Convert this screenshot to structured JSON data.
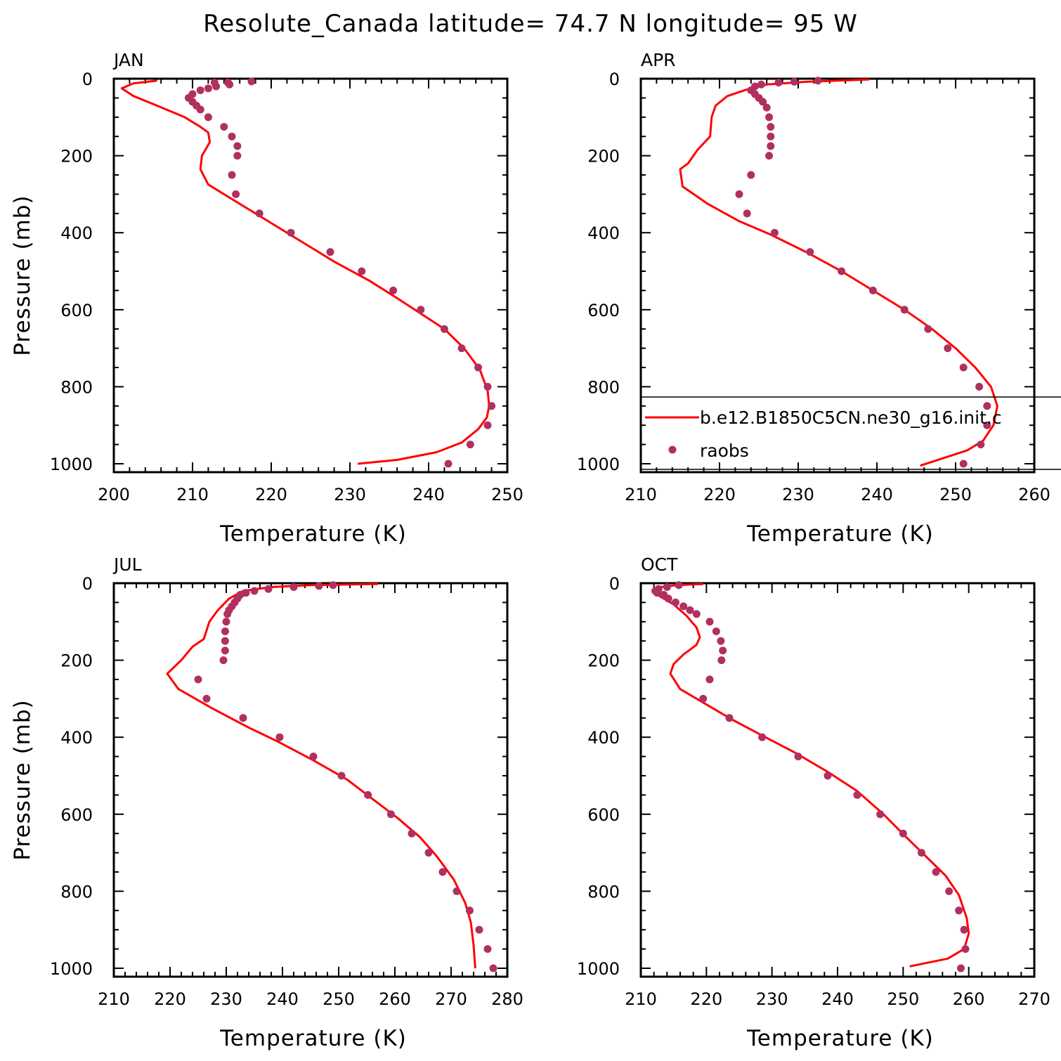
{
  "title": "Resolute_Canada  latitude= 74.7 N longitude= 95 W",
  "colors": {
    "model": "#ff0000",
    "obs": "#b03060",
    "axis": "#000000"
  },
  "legend": {
    "panel": "APR",
    "entries": [
      {
        "label": "b.e12.B1850C5CN.ne30_g16.init.c",
        "symbol": "line",
        "color": "#ff0000"
      },
      {
        "label": "raobs",
        "symbol": "dot",
        "color": "#b03060"
      }
    ]
  },
  "chart_data": [
    {
      "type": "line",
      "name": "JAN",
      "xlabel": "Temperature (K)",
      "ylabel": "Pressure (mb)",
      "xlim": [
        200,
        250
      ],
      "ylim": [
        0,
        1000
      ],
      "y_reversed": true,
      "xticks": [
        "200",
        "210",
        "220",
        "230",
        "240",
        "250"
      ],
      "yticks": [
        "0",
        "200",
        "400",
        "600",
        "800",
        "1000"
      ],
      "series": [
        {
          "name": "b.e12.B1850C5CN.ne30_g16.init.c",
          "kind": "line",
          "points": [
            [
              205.5,
              5
            ],
            [
              202.5,
              12
            ],
            [
              201.0,
              25
            ],
            [
              202.5,
              45
            ],
            [
              205.5,
              70
            ],
            [
              209.0,
              100
            ],
            [
              211.0,
              125
            ],
            [
              212.0,
              140
            ],
            [
              212.2,
              165
            ],
            [
              211.2,
              200
            ],
            [
              211.0,
              235
            ],
            [
              212.0,
              275
            ],
            [
              216.0,
              325
            ],
            [
              220.0,
              375
            ],
            [
              224.0,
              425
            ],
            [
              228.0,
              475
            ],
            [
              232.5,
              525
            ],
            [
              236.0,
              570
            ],
            [
              239.0,
              610
            ],
            [
              242.0,
              650
            ],
            [
              244.5,
              700
            ],
            [
              246.5,
              755
            ],
            [
              247.5,
              810
            ],
            [
              247.7,
              850
            ],
            [
              247.4,
              880
            ],
            [
              246.3,
              910
            ],
            [
              244.2,
              945
            ],
            [
              241.0,
              970
            ],
            [
              236.0,
              990
            ],
            [
              231.0,
              1000
            ]
          ]
        },
        {
          "name": "raobs",
          "kind": "scatter",
          "points": [
            [
              217.5,
              7
            ],
            [
              214.5,
              10
            ],
            [
              214.7,
              15
            ],
            [
              213.0,
              20
            ],
            [
              212.8,
              10
            ],
            [
              212.0,
              25
            ],
            [
              211.0,
              30
            ],
            [
              210.0,
              40
            ],
            [
              209.5,
              50
            ],
            [
              210.0,
              60
            ],
            [
              210.5,
              70
            ],
            [
              211.0,
              80
            ],
            [
              212.0,
              100
            ],
            [
              214.0,
              125
            ],
            [
              215.0,
              150
            ],
            [
              215.7,
              175
            ],
            [
              215.7,
              200
            ],
            [
              215.0,
              250
            ],
            [
              215.5,
              300
            ],
            [
              218.5,
              350
            ],
            [
              222.5,
              400
            ],
            [
              227.5,
              450
            ],
            [
              231.5,
              500
            ],
            [
              235.5,
              550
            ],
            [
              239.0,
              600
            ],
            [
              242.0,
              650
            ],
            [
              244.2,
              700
            ],
            [
              246.3,
              750
            ],
            [
              247.5,
              800
            ],
            [
              248.0,
              850
            ],
            [
              247.5,
              900
            ],
            [
              245.3,
              950
            ],
            [
              242.5,
              1000
            ]
          ]
        }
      ]
    },
    {
      "type": "line",
      "name": "APR",
      "xlabel": "Temperature (K)",
      "ylabel": "",
      "xlim": [
        210,
        260
      ],
      "ylim": [
        0,
        1000
      ],
      "y_reversed": true,
      "xticks": [
        "210",
        "220",
        "230",
        "240",
        "250",
        "260"
      ],
      "yticks": [
        "0",
        "200",
        "400",
        "600",
        "800",
        "1000"
      ],
      "series": [
        {
          "name": "b.e12.B1850C5CN.ne30_g16.init.c",
          "kind": "line",
          "points": [
            [
              239.0,
              2
            ],
            [
              231.0,
              8
            ],
            [
              226.0,
              15
            ],
            [
              223.5,
              28
            ],
            [
              221.0,
              45
            ],
            [
              219.5,
              70
            ],
            [
              219.0,
              100
            ],
            [
              218.8,
              150
            ],
            [
              217.2,
              185
            ],
            [
              216.0,
              220
            ],
            [
              215.0,
              235
            ],
            [
              215.3,
              280
            ],
            [
              218.5,
              325
            ],
            [
              222.5,
              370
            ],
            [
              226.5,
              405
            ],
            [
              231.0,
              450
            ],
            [
              235.5,
              500
            ],
            [
              239.5,
              550
            ],
            [
              243.5,
              600
            ],
            [
              247.0,
              650
            ],
            [
              250.0,
              700
            ],
            [
              252.5,
              750
            ],
            [
              254.5,
              800
            ],
            [
              255.3,
              850
            ],
            [
              254.8,
              900
            ],
            [
              253.5,
              940
            ],
            [
              251.5,
              965
            ],
            [
              248.5,
              985
            ],
            [
              245.5,
              1005
            ]
          ]
        },
        {
          "name": "raobs",
          "kind": "scatter",
          "points": [
            [
              232.5,
              5
            ],
            [
              229.5,
              8
            ],
            [
              227.5,
              10
            ],
            [
              225.3,
              15
            ],
            [
              224.5,
              20
            ],
            [
              224.0,
              30
            ],
            [
              224.5,
              40
            ],
            [
              225.0,
              50
            ],
            [
              225.5,
              60
            ],
            [
              226.0,
              75
            ],
            [
              226.3,
              100
            ],
            [
              226.5,
              125
            ],
            [
              226.5,
              150
            ],
            [
              226.5,
              175
            ],
            [
              226.3,
              200
            ],
            [
              224.0,
              250
            ],
            [
              222.5,
              300
            ],
            [
              223.5,
              350
            ],
            [
              227.0,
              400
            ],
            [
              231.5,
              450
            ],
            [
              235.5,
              500
            ],
            [
              239.5,
              550
            ],
            [
              243.5,
              600
            ],
            [
              246.5,
              650
            ],
            [
              249.0,
              700
            ],
            [
              251.0,
              750
            ],
            [
              253.0,
              800
            ],
            [
              254.0,
              850
            ],
            [
              254.0,
              900
            ],
            [
              253.2,
              950
            ],
            [
              251.0,
              1000
            ]
          ]
        }
      ]
    },
    {
      "type": "line",
      "name": "JUL",
      "xlabel": "Temperature (K)",
      "ylabel": "Pressure (mb)",
      "xlim": [
        210,
        280
      ],
      "ylim": [
        0,
        1000
      ],
      "y_reversed": true,
      "xticks": [
        "210",
        "220",
        "230",
        "240",
        "250",
        "260",
        "270",
        "280"
      ],
      "yticks": [
        "0",
        "200",
        "400",
        "600",
        "800",
        "1000"
      ],
      "series": [
        {
          "name": "b.e12.B1850C5CN.ne30_g16.init.c",
          "kind": "line",
          "points": [
            [
              257.0,
              2
            ],
            [
              245.0,
              5
            ],
            [
              238.0,
              10
            ],
            [
              233.0,
              20
            ],
            [
              230.5,
              40
            ],
            [
              228.5,
              70
            ],
            [
              227.0,
              100
            ],
            [
              226.0,
              145
            ],
            [
              224.0,
              165
            ],
            [
              222.0,
              200
            ],
            [
              219.5,
              235
            ],
            [
              221.5,
              275
            ],
            [
              227.5,
              325
            ],
            [
              234.0,
              375
            ],
            [
              239.0,
              410
            ],
            [
              245.5,
              460
            ],
            [
              251.5,
              510
            ],
            [
              256.0,
              560
            ],
            [
              260.5,
              610
            ],
            [
              264.5,
              660
            ],
            [
              267.5,
              710
            ],
            [
              270.5,
              770
            ],
            [
              272.5,
              830
            ],
            [
              273.5,
              880
            ],
            [
              274.0,
              940
            ],
            [
              274.3,
              1000
            ]
          ]
        },
        {
          "name": "raobs",
          "kind": "scatter",
          "points": [
            [
              249.0,
              5
            ],
            [
              246.5,
              7
            ],
            [
              242.0,
              10
            ],
            [
              237.5,
              15
            ],
            [
              235.0,
              20
            ],
            [
              233.5,
              25
            ],
            [
              232.5,
              30
            ],
            [
              232.0,
              40
            ],
            [
              231.5,
              50
            ],
            [
              231.0,
              60
            ],
            [
              230.5,
              70
            ],
            [
              230.2,
              80
            ],
            [
              230.0,
              100
            ],
            [
              229.8,
              125
            ],
            [
              229.8,
              150
            ],
            [
              229.8,
              175
            ],
            [
              229.5,
              200
            ],
            [
              225.0,
              250
            ],
            [
              226.5,
              300
            ],
            [
              233.0,
              350
            ],
            [
              239.5,
              400
            ],
            [
              245.5,
              450
            ],
            [
              250.5,
              500
            ],
            [
              255.2,
              550
            ],
            [
              259.3,
              600
            ],
            [
              263.0,
              650
            ],
            [
              266.0,
              700
            ],
            [
              268.5,
              750
            ],
            [
              271.0,
              800
            ],
            [
              273.3,
              850
            ],
            [
              275.0,
              900
            ],
            [
              276.5,
              950
            ],
            [
              277.5,
              1000
            ]
          ]
        }
      ]
    },
    {
      "type": "line",
      "name": "OCT",
      "xlabel": "Temperature (K)",
      "ylabel": "",
      "xlim": [
        210,
        270
      ],
      "ylim": [
        0,
        1000
      ],
      "y_reversed": true,
      "xticks": [
        "210",
        "220",
        "230",
        "240",
        "250",
        "260",
        "270"
      ],
      "yticks": [
        "0",
        "200",
        "400",
        "600",
        "800",
        "1000"
      ],
      "series": [
        {
          "name": "b.e12.B1850C5CN.ne30_g16.init.c",
          "kind": "line",
          "points": [
            [
              219.5,
              2
            ],
            [
              215.5,
              5
            ],
            [
              213.0,
              10
            ],
            [
              212.0,
              20
            ],
            [
              213.0,
              35
            ],
            [
              215.0,
              55
            ],
            [
              217.0,
              85
            ],
            [
              218.5,
              115
            ],
            [
              219.0,
              140
            ],
            [
              218.5,
              160
            ],
            [
              216.5,
              185
            ],
            [
              215.0,
              210
            ],
            [
              214.5,
              235
            ],
            [
              216.0,
              275
            ],
            [
              220.0,
              315
            ],
            [
              224.0,
              355
            ],
            [
              229.0,
              400
            ],
            [
              233.5,
              440
            ],
            [
              238.5,
              490
            ],
            [
              243.0,
              540
            ],
            [
              247.0,
              600
            ],
            [
              250.5,
              660
            ],
            [
              253.5,
              710
            ],
            [
              256.5,
              760
            ],
            [
              258.5,
              810
            ],
            [
              259.7,
              870
            ],
            [
              260.0,
              910
            ],
            [
              259.3,
              950
            ],
            [
              256.8,
              975
            ],
            [
              251.0,
              995
            ]
          ]
        },
        {
          "name": "raobs",
          "kind": "scatter",
          "points": [
            [
              215.8,
              5
            ],
            [
              214.0,
              10
            ],
            [
              212.7,
              15
            ],
            [
              212.2,
              20
            ],
            [
              212.5,
              25
            ],
            [
              213.5,
              30
            ],
            [
              214.2,
              40
            ],
            [
              215.3,
              50
            ],
            [
              216.5,
              60
            ],
            [
              217.5,
              70
            ],
            [
              218.5,
              80
            ],
            [
              220.5,
              100
            ],
            [
              221.5,
              125
            ],
            [
              222.2,
              150
            ],
            [
              222.5,
              175
            ],
            [
              222.3,
              200
            ],
            [
              220.5,
              250
            ],
            [
              219.5,
              300
            ],
            [
              223.5,
              350
            ],
            [
              228.5,
              400
            ],
            [
              234.0,
              450
            ],
            [
              238.5,
              500
            ],
            [
              243.0,
              550
            ],
            [
              246.5,
              600
            ],
            [
              250.0,
              650
            ],
            [
              252.8,
              700
            ],
            [
              255.0,
              750
            ],
            [
              257.0,
              800
            ],
            [
              258.5,
              850
            ],
            [
              259.3,
              900
            ],
            [
              259.5,
              950
            ],
            [
              258.8,
              1000
            ]
          ]
        }
      ]
    }
  ]
}
